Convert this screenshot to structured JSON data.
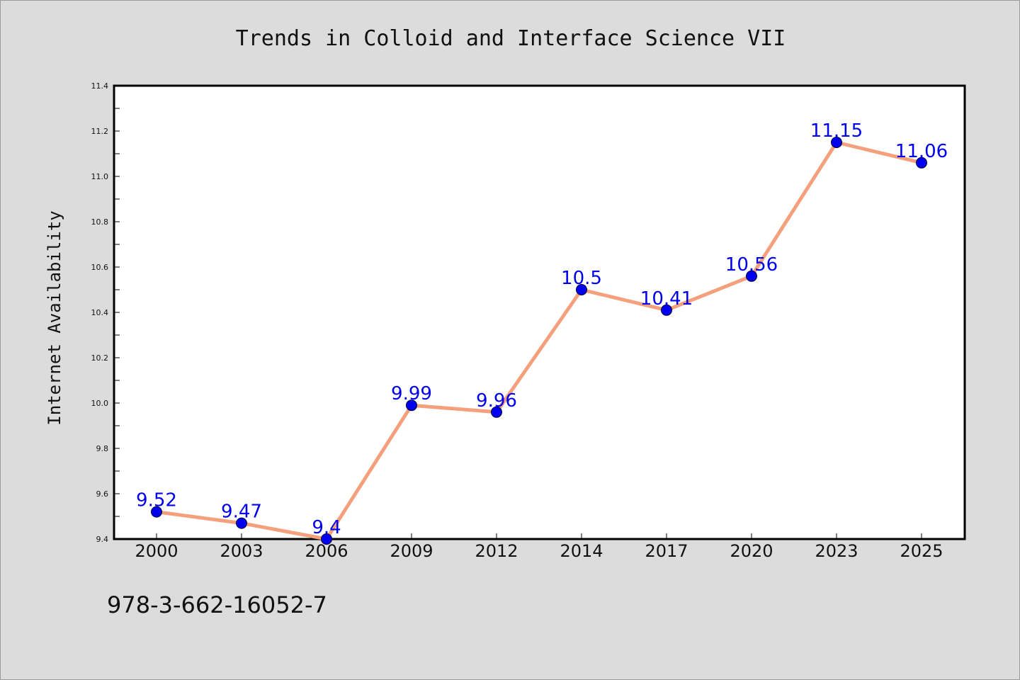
{
  "chart_data": {
    "type": "line",
    "title": "Trends in Colloid and Interface Science VII",
    "xlabel": "",
    "ylabel": "Internet Availability",
    "categories": [
      "2000",
      "2003",
      "2006",
      "2009",
      "2012",
      "2014",
      "2017",
      "2020",
      "2023",
      "2025"
    ],
    "series": [
      {
        "values": [
          9.52,
          9.47,
          9.4,
          9.99,
          9.96,
          10.5,
          10.41,
          10.56,
          11.15,
          11.06
        ],
        "labels": [
          "9.52",
          "9.47",
          "9.4",
          "9.99",
          "9.96",
          "10.5",
          "10.41",
          "10.56",
          "11.15",
          "11.06"
        ],
        "line_color": "#f4a07c",
        "marker_color": "#0000ee",
        "label_color": "#0000ee"
      }
    ],
    "ylim": [
      9.4,
      11.4
    ],
    "yticks": [
      "9.4",
      "9.6",
      "9.8",
      "10.0",
      "10.2",
      "10.4",
      "10.6",
      "10.8",
      "11.0",
      "11.2",
      "11.4"
    ],
    "grid": false,
    "legend": "none"
  },
  "footer": {
    "isbn": "978-3-662-16052-7"
  }
}
